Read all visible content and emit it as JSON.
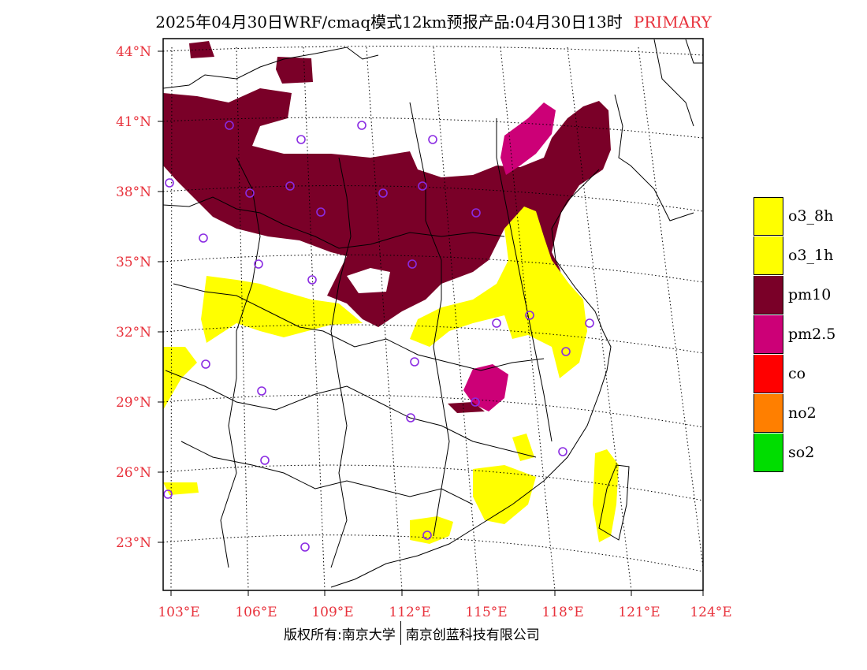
{
  "title": {
    "main": "2025年04月30日WRF/cmaq模式12km预报产品:04月30日13时",
    "tag": "PRIMARY"
  },
  "colors": {
    "o3_8h": "#ffff00",
    "o3_1h": "#ffff00",
    "pm10": "#7a0028",
    "pm2_5": "#cc0077",
    "co": "#ff0000",
    "no2": "#ff7f00",
    "so2": "#00dd00",
    "axis_text": "#e8323c",
    "station": "#8a2be2"
  },
  "lat_labels": [
    "44°N",
    "41°N",
    "38°N",
    "35°N",
    "32°N",
    "29°N",
    "26°N",
    "23°N"
  ],
  "lon_labels": [
    "103°E",
    "106°E",
    "109°E",
    "112°E",
    "115°E",
    "118°E",
    "121°E",
    "124°E"
  ],
  "legend": [
    {
      "label": "o3_8h",
      "color": "#ffff00"
    },
    {
      "label": "o3_1h",
      "color": "#ffff00"
    },
    {
      "label": "pm10",
      "color": "#7a0028"
    },
    {
      "label": "pm2.5",
      "color": "#cc0077"
    },
    {
      "label": "co",
      "color": "#ff0000"
    },
    {
      "label": "no2",
      "color": "#ff7f00"
    },
    {
      "label": "so2",
      "color": "#00dd00"
    }
  ],
  "footer": {
    "left": "版权所有:南京大学",
    "right": "南京创蓝科技有限公司"
  }
}
